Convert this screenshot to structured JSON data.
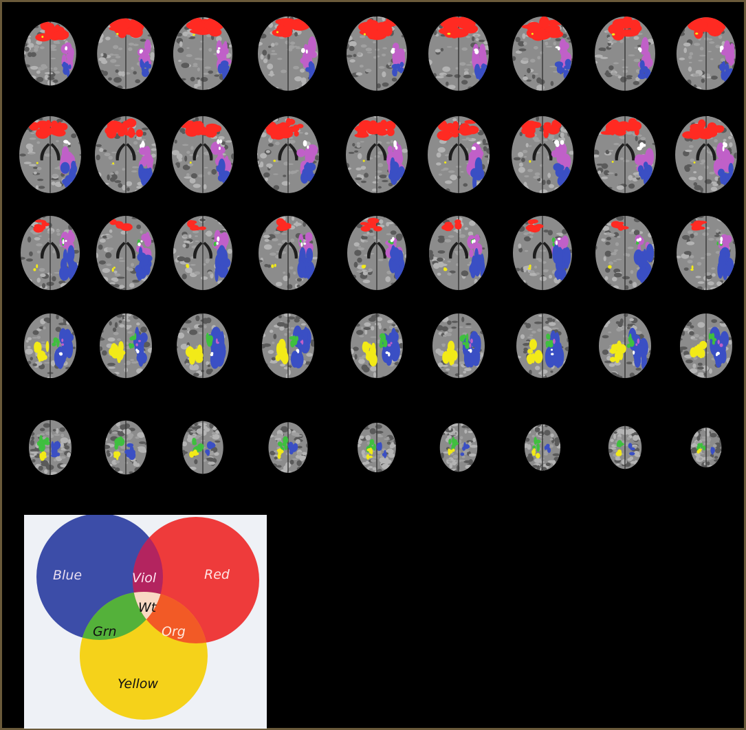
{
  "figure": {
    "rows": 5,
    "columns": 9,
    "overlay_colors": {
      "red": "#ff2a22",
      "blue": "#3a4fc4",
      "violet": "#c060c8",
      "white": "#ffffff",
      "yellow": "#f2ea18",
      "green": "#3fbf3f",
      "orange": "#ff8a1a"
    }
  },
  "legend": {
    "circles": {
      "blue": {
        "label": "Blue",
        "color": "#3c4da8",
        "text_color": "#e8ddf0"
      },
      "red": {
        "label": "Red",
        "color": "#ee3b3b",
        "text_color": "#ffe4e4"
      },
      "yellow": {
        "label": "Yellow",
        "color": "#f5d21a",
        "text_color": "#111111"
      }
    },
    "overlaps": {
      "violet": {
        "label": "Viol",
        "color": "#b3245f",
        "text_color": "#ffe6f2"
      },
      "green": {
        "label": "Grn",
        "color": "#54b13a",
        "text_color": "#111111"
      },
      "orange": {
        "label": "Org",
        "color": "#f25a26",
        "text_color": "#ffe9dc"
      },
      "white": {
        "label": "Wt",
        "color": "#f9d9c4",
        "text_color": "#111111"
      }
    }
  }
}
